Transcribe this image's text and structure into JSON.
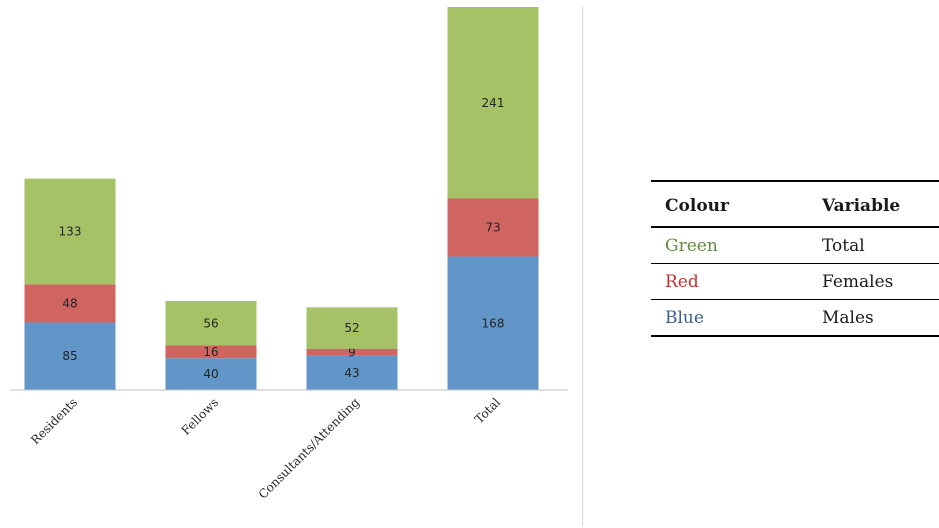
{
  "chart_data": {
    "type": "bar",
    "stacked": true,
    "categories": [
      "Residents",
      "Fellows",
      "Consultants/Attending",
      "Total"
    ],
    "series": [
      {
        "color": "#6295c8",
        "values": [
          85,
          40,
          43,
          168
        ]
      },
      {
        "color": "#d06461",
        "values": [
          48,
          16,
          9,
          73
        ]
      },
      {
        "color": "#a6c266",
        "values": [
          133,
          56,
          52,
          241
        ]
      }
    ],
    "title": "",
    "xlabel": "",
    "ylabel": "",
    "ylim": [
      0,
      482
    ],
    "grid": false
  },
  "legend_table": {
    "headers": [
      "Colour",
      "Variable"
    ],
    "rows": [
      {
        "colour": "Green",
        "variable": "Total",
        "color": "#5e8c3a"
      },
      {
        "colour": "Red",
        "variable": "Females",
        "color": "#c0312e"
      },
      {
        "colour": "Blue",
        "variable": "Males",
        "color": "#3c5e8e"
      }
    ]
  }
}
